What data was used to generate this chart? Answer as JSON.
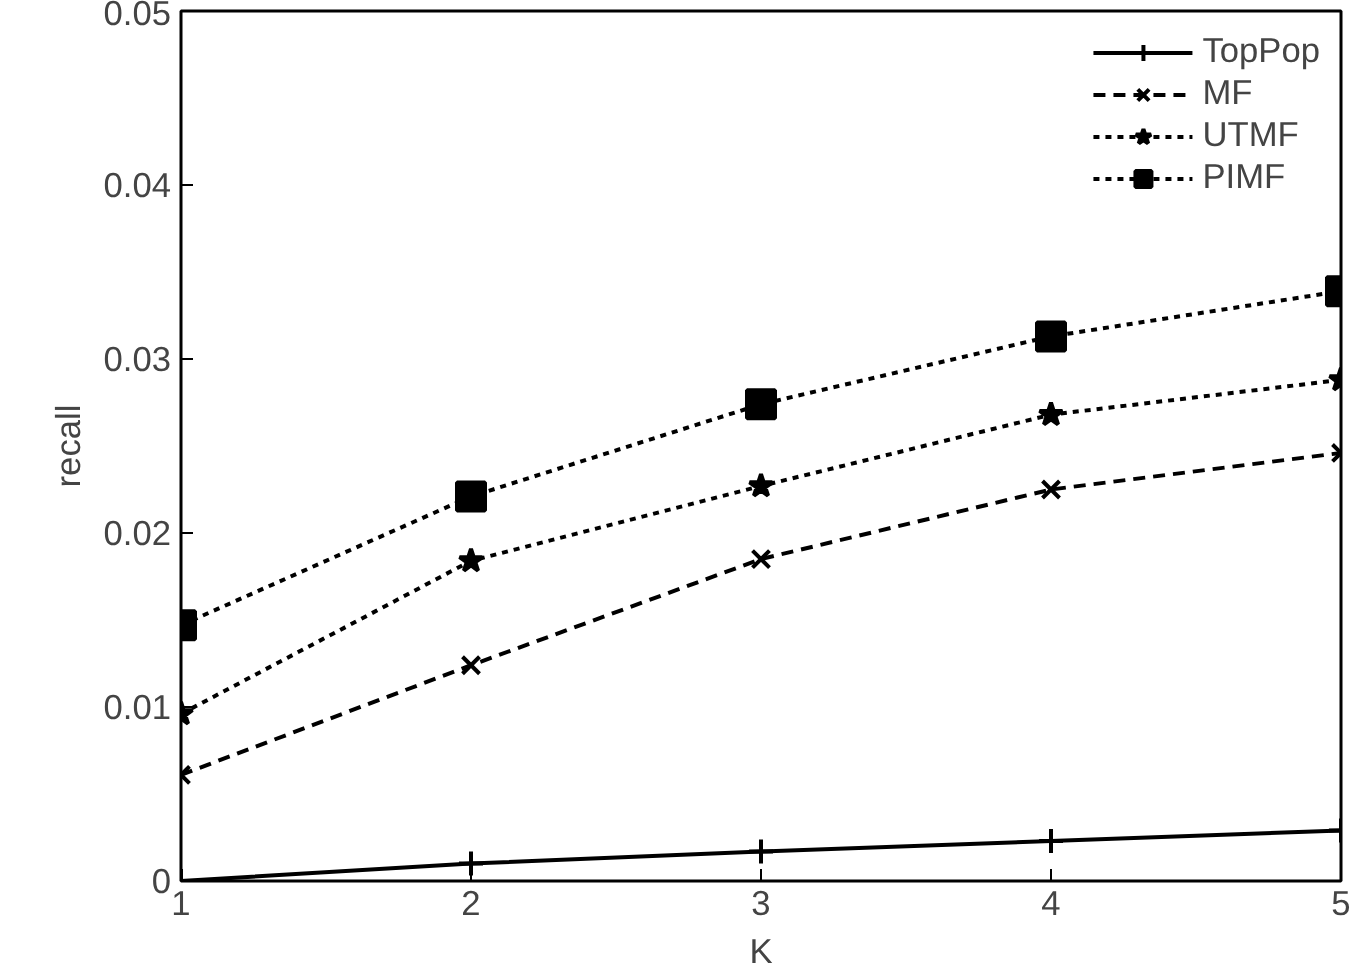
{
  "chart_data": {
    "type": "line",
    "xlabel": "K",
    "ylabel": "recall",
    "x": [
      1,
      2,
      3,
      4,
      5
    ],
    "xlim": [
      1,
      5
    ],
    "xticks": [
      1,
      2,
      3,
      4,
      5
    ],
    "ylim": [
      0,
      0.05
    ],
    "yticks": [
      0,
      0.01,
      0.02,
      0.03,
      0.04,
      0.05
    ],
    "grid": false,
    "legend": "top right",
    "series": [
      {
        "name": "TopPop",
        "color": "#000000",
        "marker": "cross",
        "line_style": "solid",
        "values": [
          0.0,
          0.001,
          0.0017,
          0.0023,
          0.0029
        ]
      },
      {
        "name": "MF",
        "color": "#000000",
        "marker": "x",
        "line_style": "dashed",
        "values": [
          0.0061,
          0.0124,
          0.0185,
          0.0225,
          0.0246
        ]
      },
      {
        "name": "UTMF",
        "color": "#000000",
        "marker": "star",
        "line_style": "dotted",
        "values": [
          0.0096,
          0.0184,
          0.0227,
          0.0268,
          0.0288
        ]
      },
      {
        "name": "PIMF",
        "color": "#000000",
        "marker": "square",
        "line_style": "dotted",
        "values": [
          0.0147,
          0.0221,
          0.0274,
          0.0313,
          0.0339
        ]
      }
    ]
  }
}
